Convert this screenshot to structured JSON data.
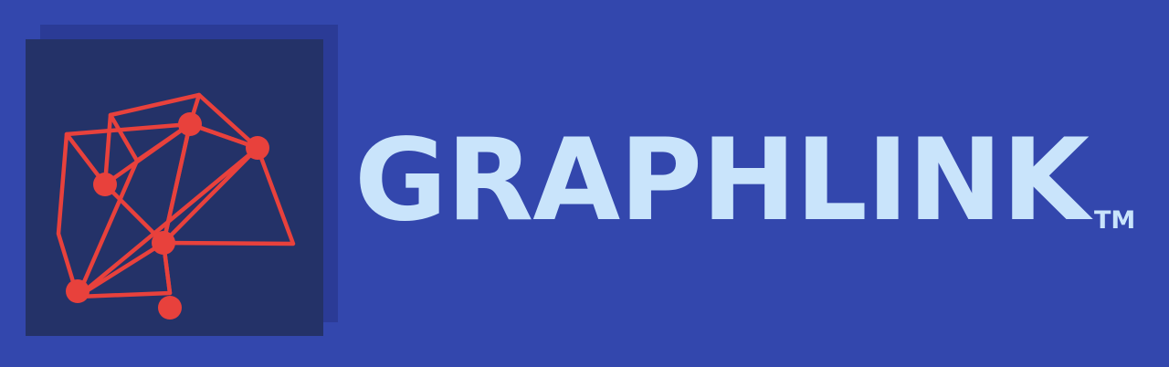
{
  "brand": {
    "name": "GRAPHLINK",
    "trademark": "TM"
  },
  "logo": {
    "icon": "network-graph-icon"
  },
  "colors": {
    "background": "#3347ad",
    "logo_box": "#243268",
    "logo_shadow": "#2b3b96",
    "network": "#e8413c",
    "text": "#c9e4fb"
  }
}
